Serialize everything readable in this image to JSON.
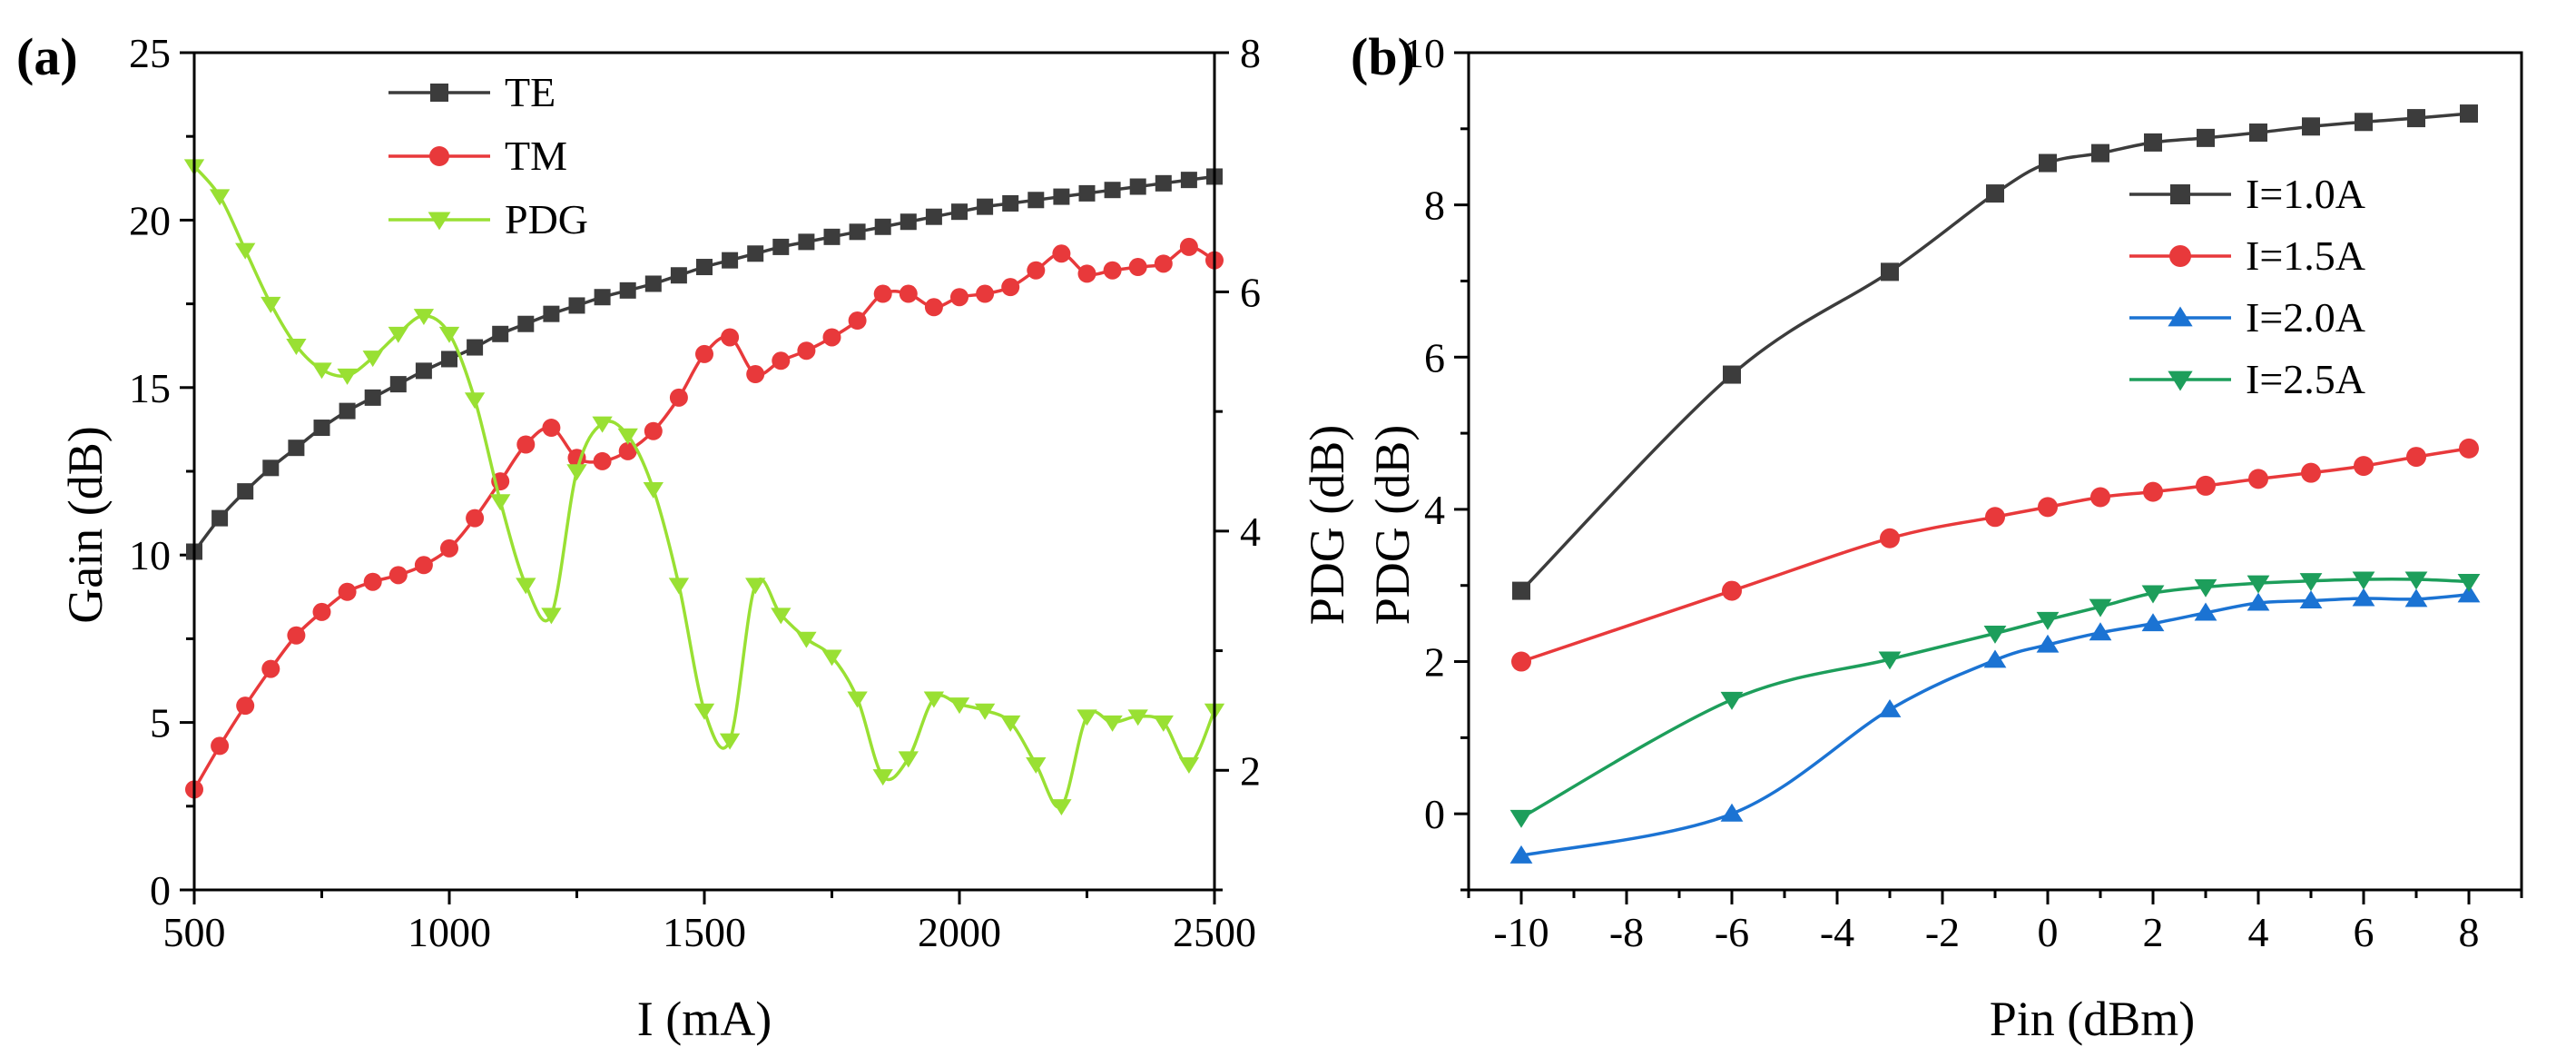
{
  "chart_data": [
    {
      "type": "line",
      "panel_label": "(a)",
      "xlabel": "I (mA)",
      "ylabel": "Gain (dB)",
      "y2label": "PDG (dB)",
      "xlim": [
        500,
        2500
      ],
      "ylim": [
        0,
        25
      ],
      "y2lim": [
        1,
        8
      ],
      "xticks": [
        500,
        1000,
        1500,
        2000,
        2500
      ],
      "yticks": [
        0,
        5,
        10,
        15,
        20,
        25
      ],
      "y2ticks": [
        2,
        4,
        6,
        8
      ],
      "legend_position": "top-center",
      "series": [
        {
          "name": "TE",
          "axis": "left",
          "color": "#3c3c3c",
          "marker": "square",
          "x": [
            500,
            550,
            600,
            650,
            700,
            750,
            800,
            850,
            900,
            950,
            1000,
            1050,
            1100,
            1150,
            1200,
            1250,
            1300,
            1350,
            1400,
            1450,
            1500,
            1550,
            1600,
            1650,
            1700,
            1750,
            1800,
            1850,
            1900,
            1950,
            2000,
            2050,
            2100,
            2150,
            2200,
            2250,
            2300,
            2350,
            2400,
            2450,
            2500
          ],
          "values": [
            10.1,
            11.1,
            11.9,
            12.6,
            13.2,
            13.8,
            14.3,
            14.7,
            15.1,
            15.5,
            15.85,
            16.2,
            16.6,
            16.9,
            17.2,
            17.45,
            17.7,
            17.9,
            18.1,
            18.35,
            18.6,
            18.8,
            19.0,
            19.2,
            19.35,
            19.5,
            19.65,
            19.8,
            19.95,
            20.1,
            20.25,
            20.4,
            20.5,
            20.6,
            20.7,
            20.8,
            20.9,
            21.0,
            21.1,
            21.2,
            21.3
          ]
        },
        {
          "name": "TM",
          "axis": "left",
          "color": "#e8393b",
          "marker": "circle",
          "x": [
            500,
            550,
            600,
            650,
            700,
            750,
            800,
            850,
            900,
            950,
            1000,
            1050,
            1100,
            1150,
            1200,
            1250,
            1300,
            1350,
            1400,
            1450,
            1500,
            1550,
            1600,
            1650,
            1700,
            1750,
            1800,
            1850,
            1900,
            1950,
            2000,
            2050,
            2100,
            2150,
            2200,
            2250,
            2300,
            2350,
            2400,
            2450,
            2500
          ],
          "values": [
            3.0,
            4.3,
            5.5,
            6.6,
            7.6,
            8.3,
            8.9,
            9.2,
            9.4,
            9.7,
            10.2,
            11.1,
            12.2,
            13.3,
            13.8,
            12.9,
            12.8,
            13.1,
            13.7,
            14.7,
            16.0,
            16.5,
            15.4,
            15.8,
            16.1,
            16.5,
            17.0,
            17.8,
            17.8,
            17.4,
            17.7,
            17.8,
            18.0,
            18.5,
            19.0,
            18.4,
            18.5,
            18.6,
            18.7,
            19.2,
            18.8
          ]
        },
        {
          "name": "PDG",
          "axis": "right",
          "color": "#99e033",
          "marker": "triangle-down",
          "x": [
            500,
            550,
            600,
            650,
            700,
            750,
            800,
            850,
            900,
            950,
            1000,
            1050,
            1100,
            1150,
            1200,
            1250,
            1300,
            1350,
            1400,
            1450,
            1500,
            1550,
            1600,
            1650,
            1700,
            1750,
            1800,
            1850,
            1900,
            1950,
            2000,
            2050,
            2100,
            2150,
            2200,
            2250,
            2300,
            2350,
            2400,
            2450,
            2500
          ],
          "values": [
            7.05,
            6.8,
            6.35,
            5.9,
            5.55,
            5.35,
            5.3,
            5.45,
            5.65,
            5.8,
            5.65,
            5.1,
            4.25,
            3.55,
            3.3,
            4.5,
            4.9,
            4.8,
            4.35,
            3.55,
            2.5,
            2.25,
            3.55,
            3.3,
            3.1,
            2.95,
            2.6,
            1.95,
            2.1,
            2.6,
            2.55,
            2.5,
            2.4,
            2.05,
            1.7,
            2.45,
            2.4,
            2.45,
            2.4,
            2.05,
            2.5
          ]
        }
      ]
    },
    {
      "type": "line",
      "panel_label": "(b)",
      "xlabel": "Pin (dBm)",
      "ylabel": "PDG (dB)",
      "xlim": [
        -11,
        9
      ],
      "ylim": [
        -1,
        10
      ],
      "xticks": [
        -10,
        -8,
        -6,
        -4,
        -2,
        0,
        2,
        4,
        6,
        8
      ],
      "yticks": [
        0,
        2,
        4,
        6,
        8,
        10
      ],
      "legend_position": "center-right",
      "series": [
        {
          "name": "I=1.0A",
          "color": "#3c3c3c",
          "marker": "square",
          "x": [
            -10,
            -6,
            -3,
            -1,
            0,
            1,
            2,
            3,
            4,
            5,
            6,
            7,
            8
          ],
          "values": [
            2.93,
            5.77,
            7.12,
            8.15,
            8.55,
            8.68,
            8.82,
            8.88,
            8.95,
            9.03,
            9.09,
            9.14,
            9.2
          ]
        },
        {
          "name": "I=1.5A",
          "color": "#e8393b",
          "marker": "circle",
          "x": [
            -10,
            -6,
            -3,
            -1,
            0,
            1,
            2,
            3,
            4,
            5,
            6,
            7,
            8
          ],
          "values": [
            2.0,
            2.93,
            3.62,
            3.9,
            4.03,
            4.16,
            4.23,
            4.31,
            4.4,
            4.48,
            4.57,
            4.69,
            4.8
          ]
        },
        {
          "name": "I=2.0A",
          "color": "#1b73d3",
          "marker": "triangle-up",
          "x": [
            -10,
            -6,
            -3,
            -1,
            0,
            1,
            2,
            3,
            4,
            5,
            6,
            7,
            8
          ],
          "values": [
            -0.55,
            0.0,
            1.37,
            2.02,
            2.22,
            2.38,
            2.5,
            2.64,
            2.77,
            2.8,
            2.83,
            2.82,
            2.88
          ]
        },
        {
          "name": "I=2.5A",
          "color": "#1d9e5b",
          "marker": "triangle-down",
          "x": [
            -10,
            -6,
            -3,
            -1,
            0,
            1,
            2,
            3,
            4,
            5,
            6,
            7,
            8
          ],
          "values": [
            -0.05,
            1.5,
            2.03,
            2.37,
            2.55,
            2.72,
            2.9,
            2.98,
            3.03,
            3.06,
            3.08,
            3.08,
            3.05
          ]
        }
      ]
    }
  ]
}
